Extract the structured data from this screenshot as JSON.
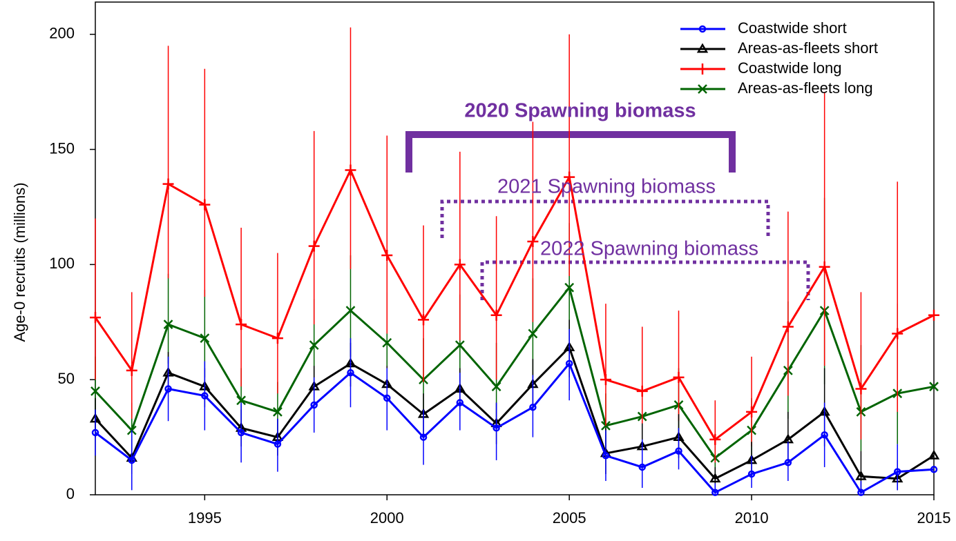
{
  "chart_data": {
    "type": "line",
    "y_label": "Age-0 recruits (millions)",
    "x": [
      1992,
      1993,
      1994,
      1995,
      1996,
      1997,
      1998,
      1999,
      2000,
      2001,
      2002,
      2003,
      2004,
      2005,
      2006,
      2007,
      2008,
      2009,
      2010,
      2011,
      2012,
      2013,
      2014,
      2015
    ],
    "xlim": [
      1992,
      2015
    ],
    "xticks": [
      1995,
      2000,
      2005,
      2010,
      2015
    ],
    "ylim": [
      0,
      214
    ],
    "yticks": [
      0,
      50,
      100,
      150,
      200
    ],
    "legend": "top-right",
    "annotations": [
      "2020 Spawning biomass",
      "2021 Spawning biomass",
      "2022 Spawning biomass"
    ],
    "series": [
      {
        "name": "Coastwide short",
        "color": "#0000ff",
        "marker": "circle",
        "values": [
          27,
          15,
          46,
          43,
          27,
          22,
          39,
          53,
          42,
          25,
          40,
          29,
          38,
          57,
          17,
          12,
          19,
          1,
          9,
          14,
          26,
          1,
          10,
          11
        ],
        "lower": [
          17,
          2,
          32,
          28,
          14,
          10,
          27,
          38,
          28,
          13,
          28,
          15,
          25,
          41,
          6,
          3,
          11,
          0,
          3,
          6,
          12,
          0,
          2,
          null
        ],
        "upper": [
          37,
          28,
          60,
          58,
          40,
          33,
          51,
          68,
          55,
          37,
          53,
          40,
          52,
          72,
          28,
          24,
          29,
          5,
          17,
          23,
          40,
          6,
          22,
          26
        ]
      },
      {
        "name": "Areas-as-fleets short",
        "color": "#000000",
        "marker": "triangle",
        "values": [
          33,
          16,
          53,
          47,
          29,
          25,
          47,
          57,
          48,
          35,
          46,
          31,
          48,
          64,
          18,
          21,
          25,
          7,
          15,
          24,
          36,
          8,
          7,
          17
        ],
        "lower": [
          25,
          9,
          44,
          38,
          21,
          17,
          39,
          47,
          39,
          26,
          37,
          22,
          37,
          51,
          9,
          12,
          16,
          3,
          8,
          15,
          21,
          2,
          2,
          null
        ],
        "upper": [
          42,
          24,
          62,
          55,
          37,
          33,
          56,
          66,
          56,
          44,
          55,
          40,
          59,
          76,
          29,
          31,
          35,
          12,
          23,
          36,
          55,
          19,
          15,
          null
        ]
      },
      {
        "name": "Coastwide long",
        "color": "#ff0000",
        "marker": "plus",
        "values": [
          77,
          54,
          135,
          126,
          74,
          68,
          108,
          141,
          104,
          76,
          100,
          78,
          110,
          138,
          50,
          45,
          51,
          24,
          36,
          73,
          99,
          46,
          70,
          78
        ],
        "lower": [
          50,
          33,
          94,
          86,
          47,
          44,
          74,
          98,
          70,
          49,
          67,
          50,
          75,
          95,
          30,
          28,
          32,
          14,
          21,
          43,
          56,
          24,
          36,
          null
        ],
        "upper": [
          120,
          88,
          195,
          185,
          116,
          105,
          158,
          203,
          156,
          117,
          149,
          121,
          162,
          200,
          83,
          73,
          80,
          41,
          60,
          123,
          175,
          88,
          136,
          null
        ]
      },
      {
        "name": "Areas-as-fleets long",
        "color": "#006400",
        "marker": "cross",
        "values": [
          45,
          28,
          74,
          68,
          41,
          36,
          65,
          80,
          66,
          50,
          65,
          47,
          70,
          90,
          30,
          34,
          39,
          16,
          28,
          54,
          80,
          36,
          44,
          47
        ],
        "lower": [
          33,
          19,
          57,
          51,
          29,
          25,
          49,
          60,
          48,
          36,
          48,
          33,
          51,
          67,
          19,
          22,
          26,
          9,
          17,
          33,
          48,
          19,
          22,
          null
        ],
        "upper": [
          60,
          40,
          96,
          89,
          55,
          49,
          85,
          104,
          88,
          68,
          87,
          66,
          94,
          118,
          44,
          48,
          55,
          25,
          42,
          84,
          129,
          65,
          83,
          null
        ]
      }
    ]
  }
}
